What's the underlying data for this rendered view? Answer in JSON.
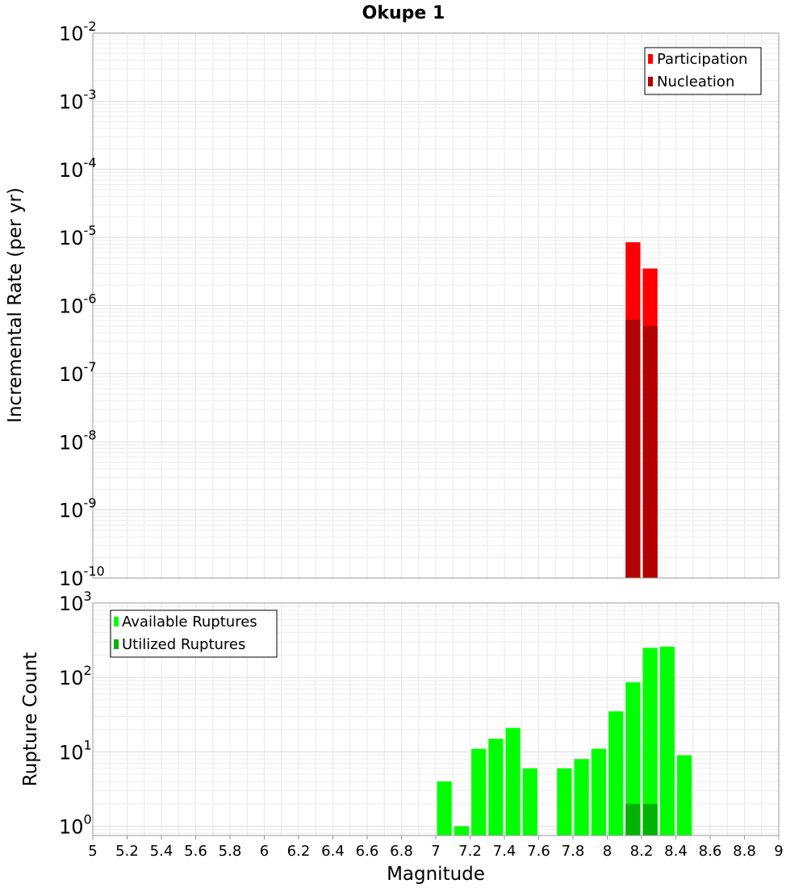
{
  "title": "Okupe 1",
  "chart_data": [
    {
      "type": "bar",
      "name": "rate-panel",
      "ylabel": "Incremental Rate (per yr)",
      "yscale": "log",
      "ylim_exp": [
        -10,
        -2
      ],
      "ytick_exps": [
        "-10",
        "-9",
        "-8",
        "-7",
        "-6",
        "-5",
        "-4",
        "-3",
        "-2"
      ],
      "ytick_base": "10",
      "legend_position": "top-right",
      "legend": [
        {
          "label": "Participation",
          "color": "#ff0000"
        },
        {
          "label": "Nucleation",
          "color": "#b30000"
        }
      ],
      "series": [
        {
          "name": "Participation",
          "color": "#ff0000",
          "x": [
            8.15,
            8.25
          ],
          "values": [
            8.5e-06,
            3.5e-06
          ]
        },
        {
          "name": "Nucleation",
          "color": "#b30000",
          "x": [
            8.15,
            8.25
          ],
          "values": [
            6.2e-07,
            5e-07
          ]
        }
      ],
      "bar_width": 0.1
    },
    {
      "type": "bar",
      "name": "count-panel",
      "ylabel": "Rupture Count",
      "yscale": "log",
      "ylim": [
        0.75,
        1000
      ],
      "ytick_exps": [
        "0",
        "1",
        "2",
        "3"
      ],
      "ytick_base": "10",
      "legend_position": "top-left",
      "legend": [
        {
          "label": "Available Ruptures",
          "color": "#00ff00"
        },
        {
          "label": "Utilized Ruptures",
          "color": "#00b300"
        }
      ],
      "series": [
        {
          "name": "Available Ruptures",
          "color": "#00ff00",
          "x": [
            7.05,
            7.15,
            7.25,
            7.35,
            7.45,
            7.55,
            7.75,
            7.85,
            7.95,
            8.05,
            8.15,
            8.25,
            8.35,
            8.45
          ],
          "values": [
            4,
            1,
            11,
            15,
            21,
            6,
            6,
            8,
            11,
            35,
            86,
            250,
            260,
            9
          ]
        },
        {
          "name": "Utilized Ruptures",
          "color": "#00b300",
          "x": [
            8.15,
            8.25
          ],
          "values": [
            2,
            2
          ]
        }
      ],
      "bar_width": 0.1
    }
  ],
  "xaxis": {
    "label": "Magnitude",
    "xlim": [
      5,
      9
    ],
    "ticks": [
      "5",
      "5.2",
      "5.4",
      "5.6",
      "5.8",
      "6",
      "6.2",
      "6.4",
      "6.6",
      "6.8",
      "7",
      "7.2",
      "7.4",
      "7.6",
      "7.8",
      "8",
      "8.2",
      "8.4",
      "8.6",
      "8.8",
      "9"
    ]
  },
  "grid": true
}
